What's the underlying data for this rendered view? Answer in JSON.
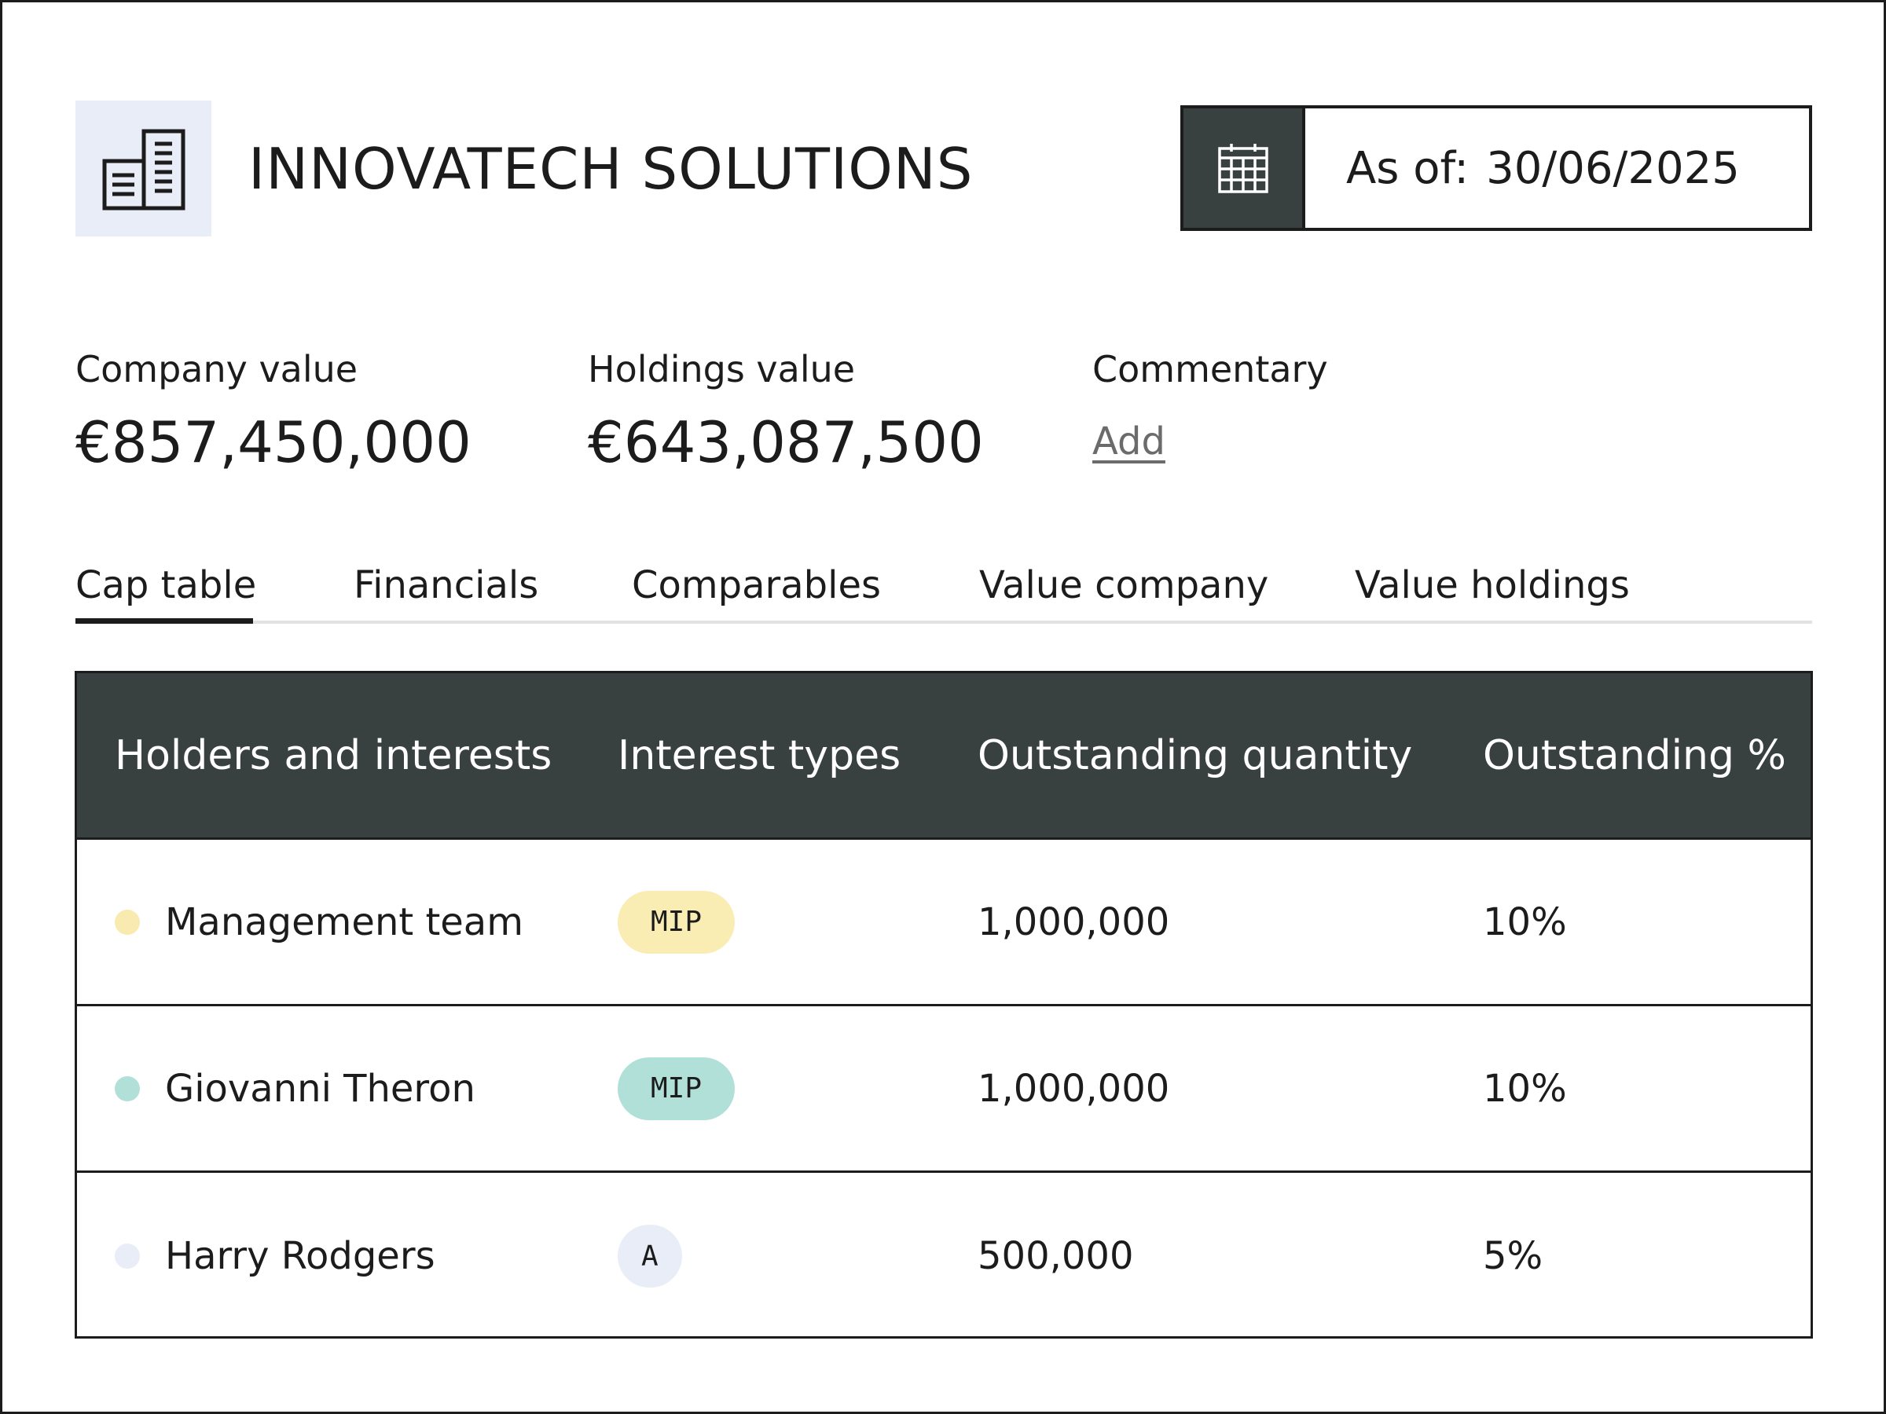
{
  "header": {
    "company_name": "INNOVATECH SOLUTIONS",
    "logo_icon": "building-icon",
    "date_prefix": "As of:",
    "date_value": "30/06/2025",
    "calendar_icon": "calendar-icon"
  },
  "stats": {
    "company_value_label": "Company value",
    "company_value": "€857,450,000",
    "holdings_value_label": "Holdings value",
    "holdings_value": "€643,087,500",
    "commentary_label": "Commentary",
    "commentary_action": "Add"
  },
  "tabs": [
    {
      "label": "Cap table",
      "active": true
    },
    {
      "label": "Financials",
      "active": false
    },
    {
      "label": "Comparables",
      "active": false
    },
    {
      "label": "Value company",
      "active": false
    },
    {
      "label": "Value holdings",
      "active": false
    }
  ],
  "table": {
    "headers": [
      "Holders and interests",
      "Interest types",
      "Outstanding quantity",
      "Outstanding %"
    ],
    "rows": [
      {
        "holder": "Management team",
        "dot_color": "#f9eab0",
        "interest_type": "MIP",
        "pill_color": "#faedb3",
        "quantity": "1,000,000",
        "percent": "10%"
      },
      {
        "holder": "Giovanni Theron",
        "dot_color": "#b0e0d8",
        "interest_type": "MIP",
        "pill_color": "#b0e0d8",
        "quantity": "1,000,000",
        "percent": "10%"
      },
      {
        "holder": "Harry Rodgers",
        "dot_color": "#e8edf8",
        "interest_type": "A",
        "pill_color": "#e8edf8",
        "quantity": "500,000",
        "percent": "5%"
      }
    ]
  },
  "colors": {
    "dark": "#394140",
    "logo_bg": "#e8edf8",
    "tab_underline": "#e2e2e2",
    "link": "#6b6b6b"
  }
}
